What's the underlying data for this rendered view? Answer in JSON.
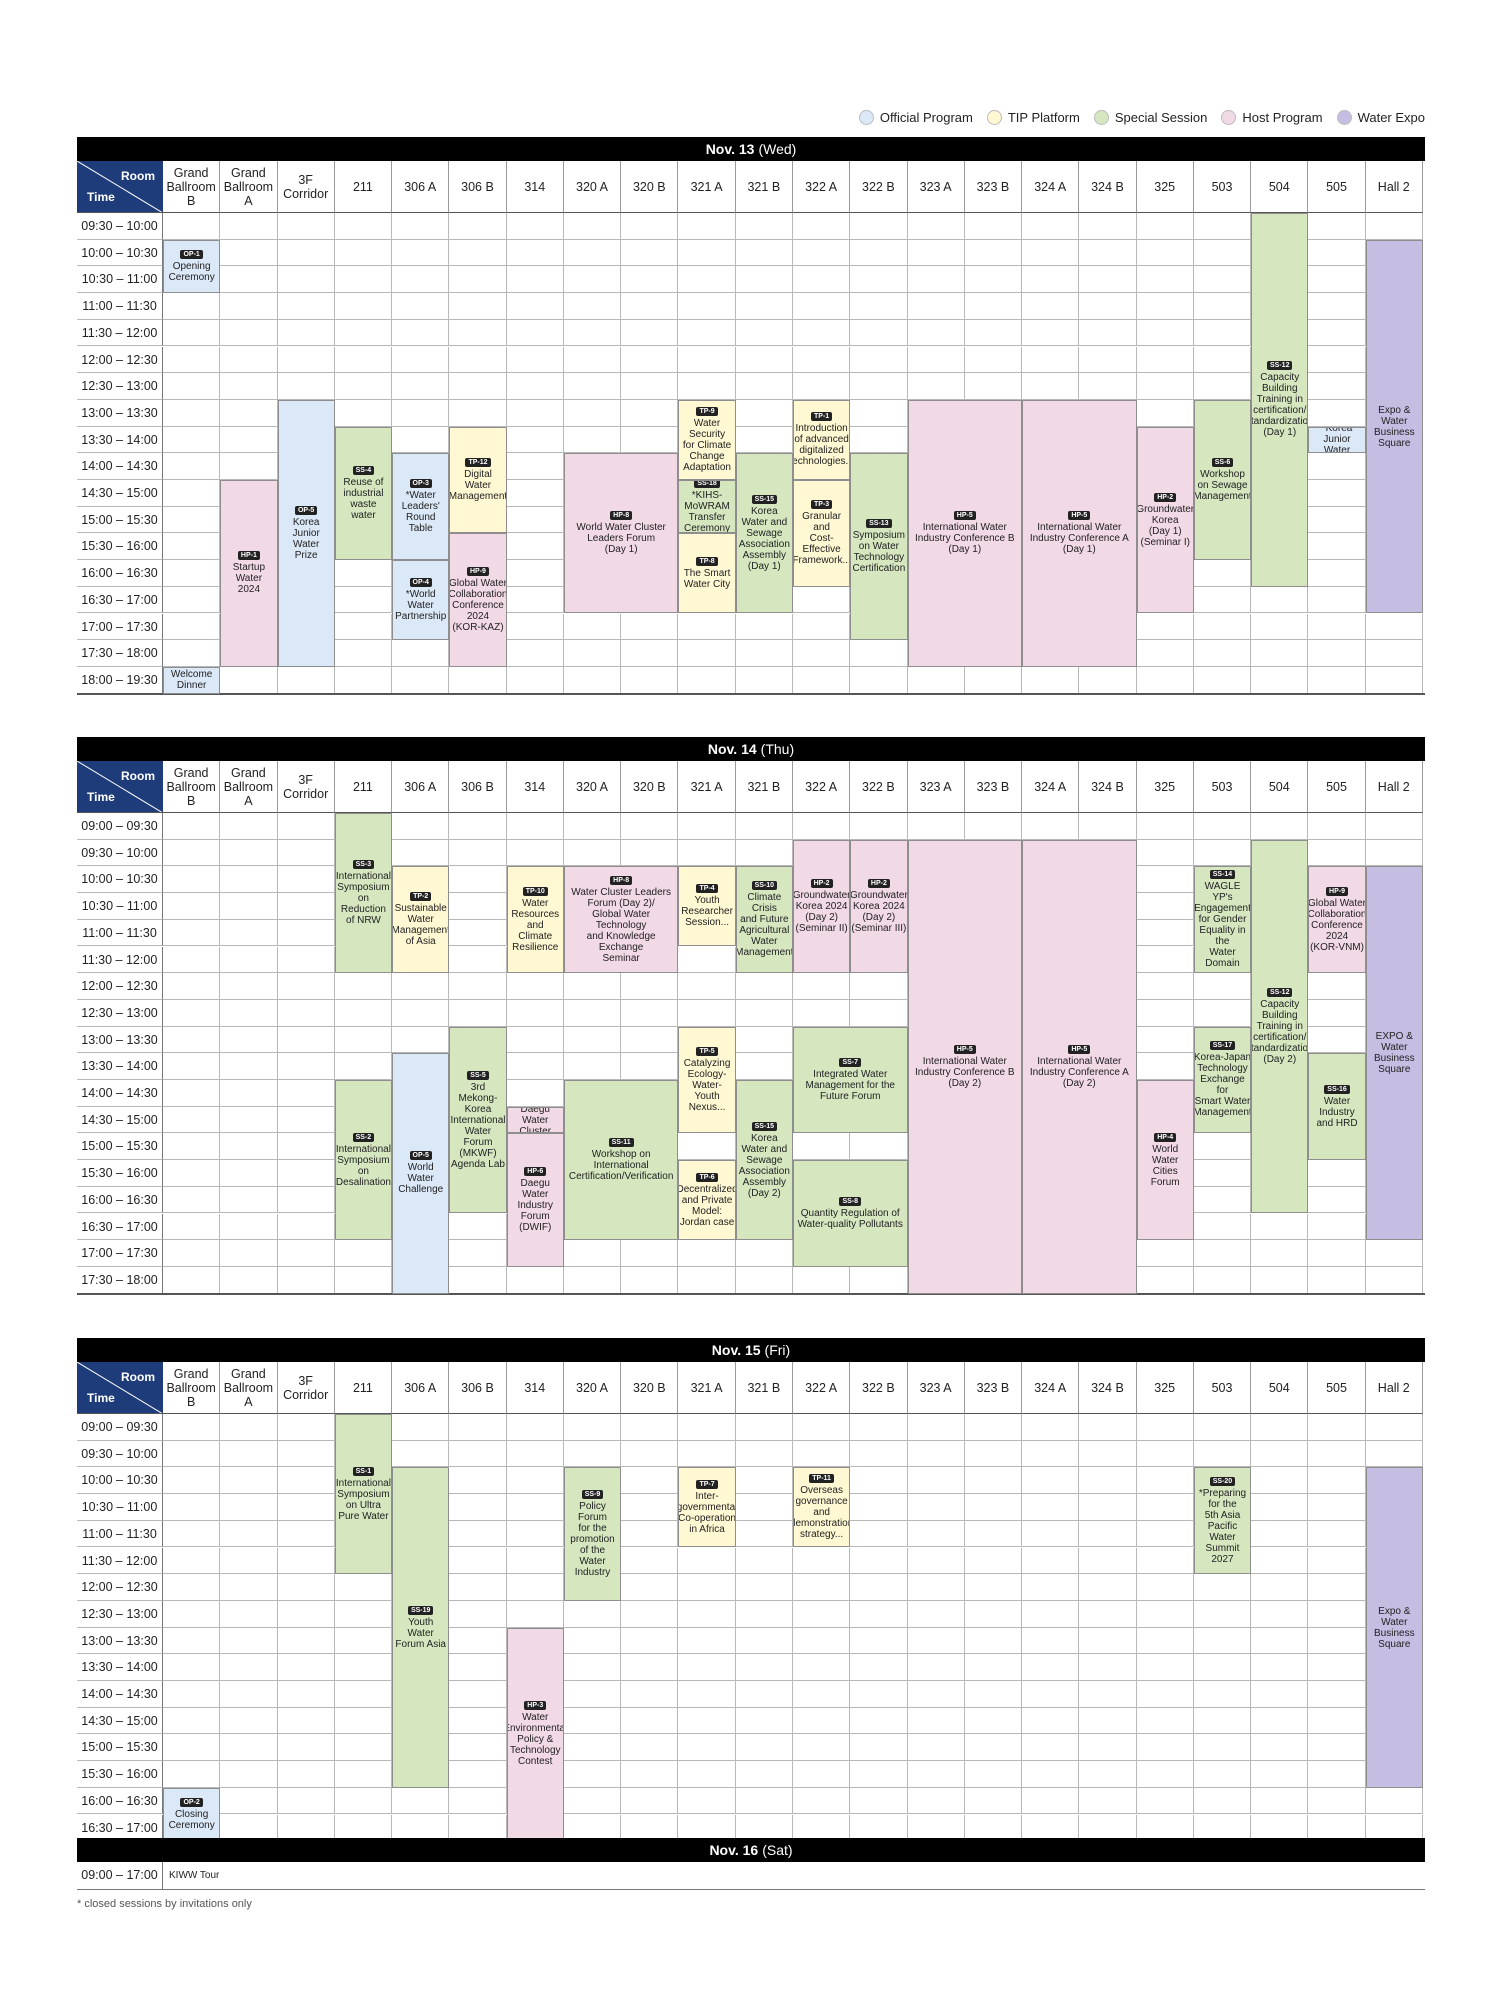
{
  "legend": [
    {
      "label": "Official Program",
      "color": "#dbe8f7"
    },
    {
      "label": "TIP Platform",
      "color": "#fff8d2"
    },
    {
      "label": "Special Session",
      "color": "#d6e7c0"
    },
    {
      "label": "Host Program",
      "color": "#f2d9e6"
    },
    {
      "label": "Water Expo",
      "color": "#c5bde2"
    }
  ],
  "corner": {
    "room": "Room",
    "time": "Time"
  },
  "rooms": [
    "Grand\nBallroom\nB",
    "Grand\nBallroom\nA",
    "3F\nCorridor",
    "211",
    "306 A",
    "306 B",
    "314",
    "320 A",
    "320 B",
    "321 A",
    "321 B",
    "322 A",
    "322 B",
    "323 A",
    "323 B",
    "324 A",
    "324 B",
    "325",
    "503",
    "504",
    "505",
    "Hall 2"
  ],
  "days": [
    {
      "date": "Nov. 13",
      "weekday": "(Wed)",
      "slots": [
        "09:30 – 10:00",
        "10:00 – 10:30",
        "10:30 – 11:00",
        "11:00 – 11:30",
        "11:30 – 12:00",
        "12:00 – 12:30",
        "12:30 – 13:00",
        "13:00 – 13:30",
        "13:30 – 14:00",
        "14:00 – 14:30",
        "14:30 – 15:00",
        "15:00 – 15:30",
        "15:30 – 16:00",
        "16:00 – 16:30",
        "16:30 – 17:00",
        "17:00 – 17:30",
        "17:30 – 18:00",
        "18:00 – 19:30"
      ],
      "sessions": [
        {
          "code": "OP-1",
          "title": "Opening\nCeremony",
          "room": 0,
          "start": 1,
          "end": 3,
          "type": "official"
        },
        {
          "code": "",
          "title": "Welcome\nDinner",
          "room": 0,
          "start": 17,
          "end": 18,
          "type": "official"
        },
        {
          "code": "HP-1",
          "title": "Startup\nWater\n2024",
          "room": 1,
          "start": 10,
          "end": 17,
          "type": "host"
        },
        {
          "code": "OP-5",
          "title": "Korea Junior\nWater Prize",
          "room": 2,
          "start": 7,
          "end": 17,
          "type": "official"
        },
        {
          "code": "SS-4",
          "title": "Reuse of\nindustrial\nwaste water",
          "room": 3,
          "start": 8,
          "end": 13,
          "type": "special"
        },
        {
          "code": "OP-3",
          "title": "*Water\nLeaders'\nRound Table",
          "room": 4,
          "start": 9,
          "end": 13,
          "type": "official"
        },
        {
          "code": "OP-4",
          "title": "*World\nWater\nPartnership",
          "room": 4,
          "start": 13,
          "end": 16,
          "type": "official"
        },
        {
          "code": "TP-12",
          "title": "Digital\nWater\nManagement",
          "room": 5,
          "start": 8,
          "end": 12,
          "type": "tip"
        },
        {
          "code": "HP-9",
          "title": "Global Water\nCollaboration\nConference\n2024\n(KOR-KAZ)",
          "room": 5,
          "start": 12,
          "end": 17,
          "type": "host"
        },
        {
          "code": "HP-8",
          "title": "World Water Cluster\nLeaders Forum\n(Day 1)",
          "room": 7,
          "start": 9,
          "end": 15,
          "type": "host",
          "span": 2
        },
        {
          "code": "TP-9",
          "title": "Water\nSecurity\nfor Climate\nChange\nAdaptation",
          "room": 9,
          "start": 7,
          "end": 10,
          "type": "tip"
        },
        {
          "code": "SS-18",
          "title": "*KIHS-MoWRAM\nTransfer\nCeremony",
          "room": 9,
          "start": 10,
          "end": 12,
          "type": "special"
        },
        {
          "code": "TP-8",
          "title": "The Smart\nWater City",
          "room": 9,
          "start": 12,
          "end": 15,
          "type": "tip"
        },
        {
          "code": "SS-15",
          "title": "Korea\nWater and\nSewage\nAssociation\nAssembly\n(Day 1)",
          "room": 10,
          "start": 9,
          "end": 15,
          "type": "special"
        },
        {
          "code": "TP-1",
          "title": "Introduction\nof advanced\ndigitalized\ntechnologies...",
          "room": 11,
          "start": 7,
          "end": 10,
          "type": "tip"
        },
        {
          "code": "TP-3",
          "title": "Granular\nand\nCost-Effective\nFramework...",
          "room": 11,
          "start": 10,
          "end": 14,
          "type": "tip"
        },
        {
          "code": "SS-13",
          "title": "Symposium\non Water\nTechnology\nCertification",
          "room": 12,
          "start": 9,
          "end": 16,
          "type": "special"
        },
        {
          "code": "HP-5",
          "title": "International Water\nIndustry Conference B\n(Day 1)",
          "room": 13,
          "start": 7,
          "end": 17,
          "type": "host",
          "span": 2
        },
        {
          "code": "HP-5",
          "title": "International Water\nIndustry Conference A\n(Day 1)",
          "room": 15,
          "start": 7,
          "end": 17,
          "type": "host",
          "span": 2
        },
        {
          "code": "HP-2",
          "title": "Groundwater\nKorea\n(Day 1)\n(Seminar I)",
          "room": 17,
          "start": 8,
          "end": 15,
          "type": "host"
        },
        {
          "code": "SS-6",
          "title": "Workshop\non Sewage\nManagement",
          "room": 18,
          "start": 7,
          "end": 13,
          "type": "special"
        },
        {
          "code": "SS-12",
          "title": "Capacity\nBuilding\nTraining in\ncertification/\nstandardization\n(Day 1)",
          "room": 19,
          "start": 0,
          "end": 14,
          "type": "special"
        },
        {
          "code": "OP-6",
          "title": "*Korea Junior\nWater Prize",
          "room": 20,
          "start": 8,
          "end": 9,
          "type": "official"
        },
        {
          "code": "",
          "title": "Expo &\nWater\nBusiness\nSquare",
          "room": 21,
          "start": 1,
          "end": 15,
          "type": "expo"
        }
      ]
    },
    {
      "date": "Nov. 14",
      "weekday": "(Thu)",
      "slots": [
        "09:00 – 09:30",
        "09:30 – 10:00",
        "10:00 – 10:30",
        "10:30 – 11:00",
        "11:00 – 11:30",
        "11:30 – 12:00",
        "12:00 – 12:30",
        "12:30 – 13:00",
        "13:00 – 13:30",
        "13:30 – 14:00",
        "14:00 – 14:30",
        "14:30 – 15:00",
        "15:00 – 15:30",
        "15:30 – 16:00",
        "16:00 – 16:30",
        "16:30 – 17:00",
        "17:00 – 17:30",
        "17:30 – 18:00"
      ],
      "sessions": [
        {
          "code": "SS-3",
          "title": "International\nSymposium\non Reduction\nof NRW",
          "room": 3,
          "start": 0,
          "end": 6,
          "type": "special"
        },
        {
          "code": "SS-2",
          "title": "International\nSymposium\non\nDesalination",
          "room": 3,
          "start": 10,
          "end": 16,
          "type": "special"
        },
        {
          "code": "TP-2",
          "title": "Sustainable\nWater\nManagement\nof Asia",
          "room": 4,
          "start": 2,
          "end": 6,
          "type": "tip"
        },
        {
          "code": "OP-5",
          "title": "World\nWater\nChallenge",
          "room": 4,
          "start": 9,
          "end": 18,
          "type": "official"
        },
        {
          "code": "SS-5",
          "title": "3rd Mekong-\nKorea\nInternational\nWater Forum\n(MKWF)\nAgenda Lab",
          "room": 5,
          "start": 8,
          "end": 15,
          "type": "special"
        },
        {
          "code": "TP-10",
          "title": "Water\nResources\nand Climate\nResilience",
          "room": 6,
          "start": 2,
          "end": 6,
          "type": "tip"
        },
        {
          "code": "HP-7",
          "title": "MOU Daegu Water\nCluster member company",
          "room": 6,
          "start": 11,
          "end": 12,
          "type": "host"
        },
        {
          "code": "HP-6",
          "title": "Daegu\nWater\nIndustry\nForum\n(DWIF)",
          "room": 6,
          "start": 12,
          "end": 17,
          "type": "host"
        },
        {
          "code": "HP-8",
          "title": "Water Cluster Leaders\nForum (Day 2)/\nGlobal Water Technology\nand Knowledge Exchange\nSeminar",
          "room": 7,
          "start": 2,
          "end": 6,
          "type": "host",
          "span": 2
        },
        {
          "code": "SS-11",
          "title": "Workshop on\nInternational\nCertification/Verification",
          "room": 7,
          "start": 10,
          "end": 16,
          "type": "special",
          "span": 2
        },
        {
          "code": "TP-4",
          "title": "Youth\nResearcher\nSession...",
          "room": 9,
          "start": 2,
          "end": 5,
          "type": "tip"
        },
        {
          "code": "TP-5",
          "title": "Catalyzing\nEcology-\nWater-Youth\nNexus...",
          "room": 9,
          "start": 8,
          "end": 12,
          "type": "tip"
        },
        {
          "code": "TP-6",
          "title": "Decentralized\nand Private\nModel:\nJordan case",
          "room": 9,
          "start": 13,
          "end": 16,
          "type": "tip"
        },
        {
          "code": "SS-10",
          "title": "Climate Crisis\nand Future\nAgricultural\nWater\nManagement",
          "room": 10,
          "start": 2,
          "end": 6,
          "type": "special"
        },
        {
          "code": "SS-15",
          "title": "Korea\nWater and\nSewage\nAssociation\nAssembly\n(Day 2)",
          "room": 10,
          "start": 10,
          "end": 16,
          "type": "special"
        },
        {
          "code": "HP-2",
          "title": "Groundwater\nKorea 2024\n(Day 2)\n(Seminar II)",
          "room": 11,
          "start": 1,
          "end": 6,
          "type": "host"
        },
        {
          "code": "HP-2",
          "title": "Groundwater\nKorea 2024\n(Day 2)\n(Seminar III)",
          "room": 12,
          "start": 1,
          "end": 6,
          "type": "host"
        },
        {
          "code": "SS-7",
          "title": "Integrated Water\nManagement for the\nFuture Forum",
          "room": 11,
          "start": 8,
          "end": 12,
          "type": "special",
          "span": 2
        },
        {
          "code": "SS-8",
          "title": "Quantity Regulation of\nWater-quality Pollutants",
          "room": 11,
          "start": 13,
          "end": 17,
          "type": "special",
          "span": 2
        },
        {
          "code": "HP-5",
          "title": "International Water\nIndustry Conference B\n(Day 2)",
          "room": 13,
          "start": 1,
          "end": 18,
          "type": "host",
          "span": 2
        },
        {
          "code": "HP-5",
          "title": "International Water\nIndustry Conference A\n(Day 2)",
          "room": 15,
          "start": 1,
          "end": 18,
          "type": "host",
          "span": 2
        },
        {
          "code": "HP-4",
          "title": "World Water\nCities Forum",
          "room": 17,
          "start": 10,
          "end": 16,
          "type": "host"
        },
        {
          "code": "SS-14",
          "title": "WAGLE YP's\nEngagement\nfor Gender\nEquality in the\nWater Domain",
          "room": 18,
          "start": 2,
          "end": 6,
          "type": "special"
        },
        {
          "code": "SS-17",
          "title": "Korea-Japan\nTechnology\nExchange for\nSmart Water\nManagement",
          "room": 18,
          "start": 8,
          "end": 12,
          "type": "special"
        },
        {
          "code": "SS-12",
          "title": "Capacity\nBuilding\nTraining in\ncertification/\nstandardization\n(Day 2)",
          "room": 19,
          "start": 1,
          "end": 15,
          "type": "special"
        },
        {
          "code": "HP-9",
          "title": "Global Water\nCollaboration\nConference\n2024\n(KOR-VNM)",
          "room": 20,
          "start": 2,
          "end": 6,
          "type": "host"
        },
        {
          "code": "SS-16",
          "title": "Water\nIndustry\nand HRD",
          "room": 20,
          "start": 9,
          "end": 13,
          "type": "special"
        },
        {
          "code": "",
          "title": "EXPO &\nWater\nBusiness\nSquare",
          "room": 21,
          "start": 2,
          "end": 16,
          "type": "expo"
        }
      ]
    },
    {
      "date": "Nov. 15",
      "weekday": "(Fri)",
      "slots": [
        "09:00 – 09:30",
        "09:30 – 10:00",
        "10:00 – 10:30",
        "10:30 – 11:00",
        "11:00 – 11:30",
        "11:30 – 12:00",
        "12:00 – 12:30",
        "12:30 – 13:00",
        "13:00 – 13:30",
        "13:30 – 14:00",
        "14:00 – 14:30",
        "14:30 – 15:00",
        "15:00 – 15:30",
        "15:30 – 16:00",
        "16:00 – 16:30",
        "16:30 – 17:00"
      ],
      "sessions": [
        {
          "code": "OP-2",
          "title": "Closing\nCeremony",
          "room": 0,
          "start": 14,
          "end": 16,
          "type": "official"
        },
        {
          "code": "SS-1",
          "title": "International\nSymposium\non Ultra\nPure Water",
          "room": 3,
          "start": 0,
          "end": 6,
          "type": "special"
        },
        {
          "code": "SS-19",
          "title": "Youth Water\nForum Asia",
          "room": 4,
          "start": 2,
          "end": 14,
          "type": "special"
        },
        {
          "code": "HP-3",
          "title": "Water\nEnvironmental\nPolicy &\nTechnology\nContest",
          "room": 6,
          "start": 8,
          "end": 16,
          "type": "host"
        },
        {
          "code": "SS-9",
          "title": "Policy Forum\nfor the\npromotion\nof the Water\nIndustry",
          "room": 7,
          "start": 2,
          "end": 7,
          "type": "special"
        },
        {
          "code": "TP-7",
          "title": "Inter-\ngovernmental\nCo-operation\nin Africa",
          "room": 9,
          "start": 2,
          "end": 5,
          "type": "tip"
        },
        {
          "code": "TP-11",
          "title": "Overseas\ngovernance\nand\ndemonstration\nstrategy...",
          "room": 11,
          "start": 2,
          "end": 5,
          "type": "tip"
        },
        {
          "code": "SS-20",
          "title": "*Preparing\nfor the\n5th Asia\nPacific\nWater\nSummit\n2027",
          "room": 18,
          "start": 2,
          "end": 6,
          "type": "special"
        },
        {
          "code": "",
          "title": "Expo &\nWater\nBusiness\nSquare",
          "room": 21,
          "start": 2,
          "end": 14,
          "type": "expo"
        }
      ]
    }
  ],
  "saturday": {
    "date": "Nov. 16",
    "weekday": "(Sat)",
    "time": "09:00 – 17:00",
    "label": "KIWW Tour"
  },
  "footnote": "* closed sessions by invitations only"
}
